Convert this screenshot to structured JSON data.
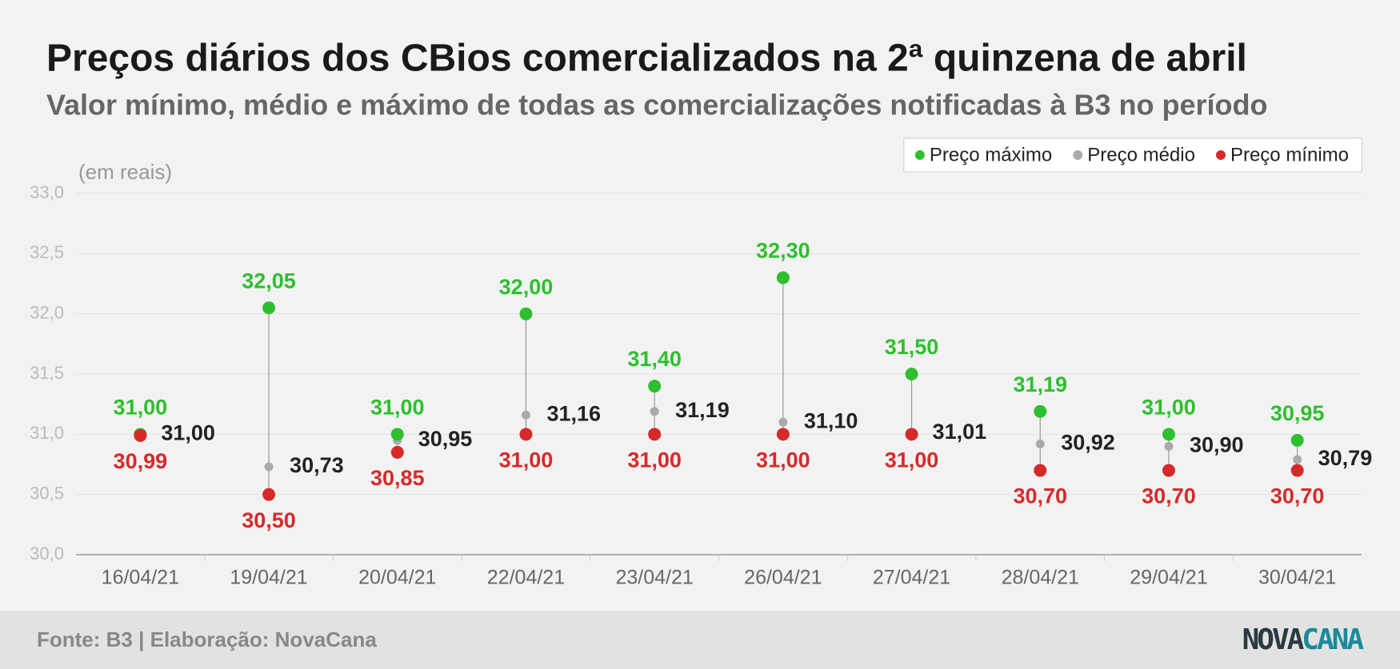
{
  "chart_data": {
    "type": "dot-range",
    "title": "Preços diários dos CBios comercializados na 2ª quinzena de abril",
    "subtitle": "Valor mínimo, médio e máximo de todas as comercializações notificadas à B3 no período",
    "y_label": "(em reais)",
    "categories": [
      "16/04/21",
      "19/04/21",
      "20/04/21",
      "22/04/21",
      "23/04/21",
      "26/04/21",
      "27/04/21",
      "28/04/21",
      "29/04/21",
      "30/04/21"
    ],
    "series": [
      {
        "name": "Preço máximo",
        "color": "#2ebf2e",
        "values": [
          31.0,
          32.05,
          31.0,
          32.0,
          31.4,
          32.3,
          31.5,
          31.19,
          31.0,
          30.95
        ],
        "value_labels": [
          "31,00",
          "32,05",
          "31,00",
          "32,00",
          "31,40",
          "32,30",
          "31,50",
          "31,19",
          "31,00",
          "30,95"
        ]
      },
      {
        "name": "Preço médio",
        "color": "#aaaaaa",
        "label_color": "#222222",
        "values": [
          31.0,
          30.73,
          30.95,
          31.16,
          31.19,
          31.1,
          31.01,
          30.92,
          30.9,
          30.79
        ],
        "value_labels": [
          "31,00",
          "30,73",
          "30,95",
          "31,16",
          "31,19",
          "31,10",
          "31,01",
          "30,92",
          "30,90",
          "30,79"
        ]
      },
      {
        "name": "Preço mínimo",
        "color": "#d62a2a",
        "values": [
          30.99,
          30.5,
          30.85,
          31.0,
          31.0,
          31.0,
          31.0,
          30.7,
          30.7,
          30.7
        ],
        "value_labels": [
          "30,99",
          "30,50",
          "30,85",
          "31,00",
          "31,00",
          "31,00",
          "31,00",
          "30,70",
          "30,70",
          "30,70"
        ]
      }
    ],
    "ylim": [
      30.0,
      33.0
    ],
    "yticks": [
      {
        "value": 30.0,
        "label": "30,0"
      },
      {
        "value": 30.5,
        "label": "30,5"
      },
      {
        "value": 31.0,
        "label": "31,0"
      },
      {
        "value": 31.5,
        "label": "31,5"
      },
      {
        "value": 32.0,
        "label": "32,0"
      },
      {
        "value": 32.5,
        "label": "32,5"
      },
      {
        "value": 33.0,
        "label": "33,0"
      }
    ],
    "grid": true,
    "legend": "top-right"
  },
  "footer": {
    "source": "Fonte: B3 | Elaboração: NovaCana",
    "logo_left": "NOVA",
    "logo_right": "CANA"
  }
}
